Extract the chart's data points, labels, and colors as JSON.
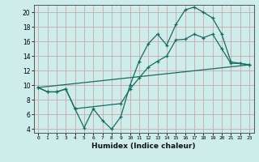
{
  "title": "",
  "xlabel": "Humidex (Indice chaleur)",
  "background_color": "#cdecea",
  "grid_color": "#c8a8a8",
  "line_color": "#1a6b5e",
  "xlim": [
    -0.5,
    23.5
  ],
  "ylim": [
    3.5,
    21
  ],
  "yticks": [
    4,
    6,
    8,
    10,
    12,
    14,
    16,
    18,
    20
  ],
  "xticks": [
    0,
    1,
    2,
    3,
    4,
    5,
    6,
    7,
    8,
    9,
    10,
    11,
    12,
    13,
    14,
    15,
    16,
    17,
    18,
    19,
    20,
    21,
    22,
    23
  ],
  "line1_x": [
    0,
    1,
    2,
    3,
    4,
    5,
    6,
    7,
    8,
    9,
    10,
    11,
    12,
    13,
    14,
    15,
    16,
    17,
    18,
    19,
    20,
    21,
    22,
    23
  ],
  "line1_y": [
    9.7,
    9.1,
    9.1,
    9.5,
    6.8,
    4.2,
    6.8,
    5.2,
    4.0,
    5.7,
    10.0,
    13.3,
    15.7,
    17.0,
    15.5,
    18.3,
    20.3,
    20.7,
    20.0,
    19.2,
    17.0,
    13.2,
    13.0,
    12.8
  ],
  "line2_x": [
    0,
    1,
    2,
    3,
    4,
    9,
    10,
    11,
    12,
    13,
    14,
    15,
    16,
    17,
    18,
    19,
    20,
    21,
    22,
    23
  ],
  "line2_y": [
    9.7,
    9.1,
    9.1,
    9.5,
    6.8,
    7.5,
    9.5,
    11.0,
    12.5,
    13.3,
    14.0,
    16.2,
    16.3,
    17.0,
    16.5,
    17.0,
    15.0,
    13.0,
    13.0,
    12.8
  ],
  "line3_x": [
    0,
    23
  ],
  "line3_y": [
    9.7,
    12.8
  ]
}
